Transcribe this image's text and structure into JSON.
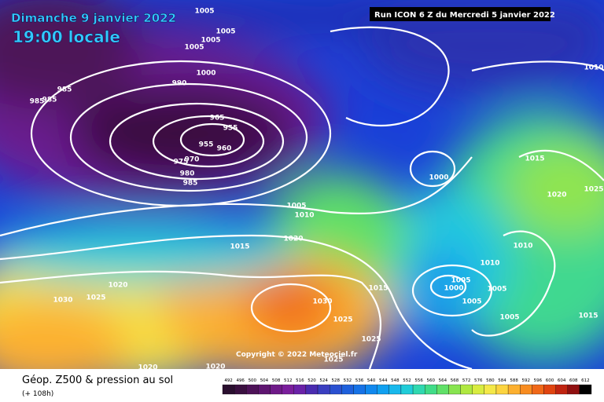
{
  "header": {
    "date": "Dimanche 9 janvier 2022",
    "time": "19:00 locale",
    "run": "Run ICON 6 Z du Mercredi 5 janvier 2022"
  },
  "copyright": "Copyright © 2022 Meteociel.fr",
  "footer": {
    "title": "Géop. Z500 & pression au sol",
    "lead": "(+ 108h)"
  },
  "isobar_labels": [
    "1005",
    "1005",
    "1005",
    "1005",
    "1000",
    "990",
    "985",
    "985",
    "985",
    "965",
    "955",
    "955",
    "960",
    "975",
    "970",
    "980",
    "985",
    "1000",
    "1015",
    "1020",
    "1025",
    "1010",
    "1005",
    "1010",
    "1020",
    "1015",
    "1010",
    "1010",
    "1005",
    "1000",
    "1005",
    "1005",
    "1005",
    "1015",
    "1015",
    "1020",
    "1025",
    "1030",
    "1030",
    "1025",
    "1025",
    "1025",
    "1020",
    "1020"
  ],
  "legend": {
    "labels": [
      "492",
      "496",
      "500",
      "504",
      "508",
      "512",
      "516",
      "520",
      "524",
      "528",
      "532",
      "536",
      "540",
      "544",
      "548",
      "552",
      "556",
      "560",
      "564",
      "568",
      "572",
      "576",
      "580",
      "584",
      "588",
      "592",
      "596",
      "600",
      "604",
      "608",
      "612"
    ],
    "colors": [
      "#2a0f2f",
      "#3a1040",
      "#4d1258",
      "#5e1570",
      "#6e1a88",
      "#7a1e9c",
      "#6a22a8",
      "#4a2cb0",
      "#3a3ec0",
      "#2a50d0",
      "#1e60dc",
      "#1672e6",
      "#1088ee",
      "#10a0f0",
      "#18b8ec",
      "#20ccd8",
      "#30d8b0",
      "#40dc88",
      "#60e068",
      "#88e450",
      "#b0e840",
      "#d8ec40",
      "#f4e848",
      "#fcd440",
      "#fcb030",
      "#f88c20",
      "#f06818",
      "#e04410",
      "#c02410",
      "#901010",
      "#000000"
    ]
  }
}
